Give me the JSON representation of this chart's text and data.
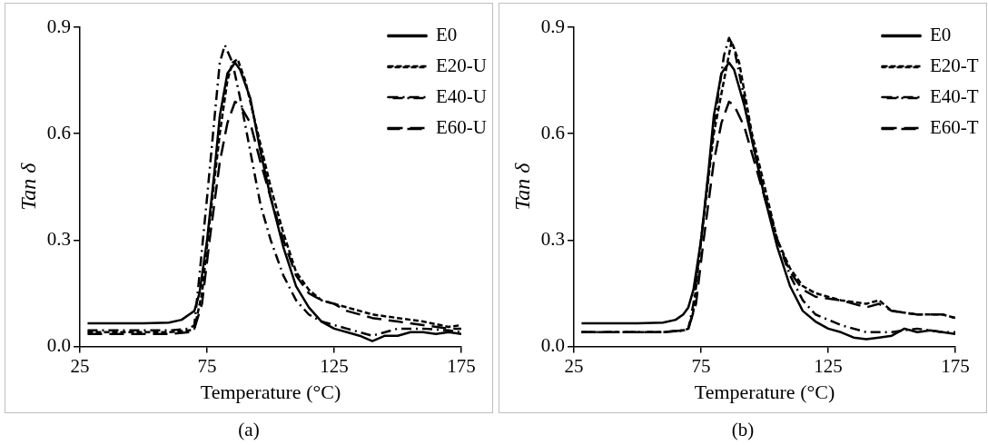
{
  "chart_data": [
    {
      "type": "line",
      "xlabel": "Temperature (°C)",
      "ylabel": "Tan δ",
      "annotations": [
        "(a)"
      ],
      "xlim": [
        25,
        175
      ],
      "xticks": [
        25,
        75,
        125,
        175
      ],
      "ylim": [
        0,
        0.9
      ],
      "yticks": [
        {
          "value": 0,
          "label": "0.0"
        },
        0.3,
        0.6,
        0.9
      ],
      "grid": false,
      "legend": "top right",
      "marker": "none",
      "series": [
        {
          "name": "E0",
          "color": "#000000",
          "line_style": "solid",
          "x": [
            28,
            40,
            50,
            60,
            65,
            68,
            70,
            72,
            75,
            78,
            80,
            83,
            86,
            88,
            92,
            96,
            100,
            105,
            110,
            115,
            120,
            125,
            130,
            135,
            140,
            145,
            150,
            155,
            160,
            165,
            170,
            175
          ],
          "values": [
            0.065,
            0.065,
            0.065,
            0.067,
            0.075,
            0.09,
            0.1,
            0.15,
            0.3,
            0.5,
            0.65,
            0.77,
            0.8,
            0.78,
            0.7,
            0.55,
            0.42,
            0.28,
            0.17,
            0.11,
            0.07,
            0.05,
            0.04,
            0.03,
            0.015,
            0.03,
            0.03,
            0.04,
            0.04,
            0.035,
            0.04,
            0.035
          ]
        },
        {
          "name": "E20-U",
          "color": "#000000",
          "line_style": "dashed",
          "x": [
            28,
            40,
            50,
            60,
            68,
            70,
            73,
            76,
            80,
            83,
            85,
            87,
            90,
            95,
            100,
            105,
            110,
            115,
            120,
            125,
            130,
            140,
            150,
            160,
            170,
            175
          ],
          "values": [
            0.04,
            0.04,
            0.04,
            0.04,
            0.045,
            0.05,
            0.15,
            0.35,
            0.6,
            0.75,
            0.8,
            0.81,
            0.75,
            0.6,
            0.45,
            0.32,
            0.21,
            0.16,
            0.13,
            0.12,
            0.11,
            0.09,
            0.08,
            0.07,
            0.055,
            0.06
          ]
        },
        {
          "name": "E40-U",
          "color": "#000000",
          "line_style": "dashdot",
          "x": [
            28,
            40,
            50,
            60,
            68,
            70,
            72,
            75,
            78,
            80,
            82,
            85,
            88,
            92,
            96,
            100,
            105,
            110,
            115,
            120,
            130,
            140,
            150,
            160,
            170,
            175
          ],
          "values": [
            0.045,
            0.045,
            0.045,
            0.045,
            0.05,
            0.06,
            0.2,
            0.42,
            0.65,
            0.8,
            0.85,
            0.8,
            0.7,
            0.55,
            0.4,
            0.3,
            0.2,
            0.13,
            0.09,
            0.07,
            0.05,
            0.03,
            0.05,
            0.05,
            0.045,
            0.04
          ]
        },
        {
          "name": "E60-U",
          "color": "#000000",
          "line_style": "longdash",
          "x": [
            28,
            40,
            50,
            60,
            68,
            70,
            73,
            76,
            80,
            83,
            86,
            88,
            92,
            96,
            100,
            105,
            110,
            115,
            120,
            125,
            130,
            140,
            150,
            160,
            170,
            175
          ],
          "values": [
            0.035,
            0.035,
            0.035,
            0.035,
            0.04,
            0.05,
            0.12,
            0.3,
            0.52,
            0.63,
            0.69,
            0.68,
            0.63,
            0.52,
            0.42,
            0.3,
            0.2,
            0.15,
            0.13,
            0.12,
            0.1,
            0.08,
            0.07,
            0.06,
            0.05,
            0.05
          ]
        }
      ]
    },
    {
      "type": "line",
      "xlabel": "Temperature (°C)",
      "ylabel": "Tan δ",
      "annotations": [
        "(b)"
      ],
      "xlim": [
        25,
        175
      ],
      "xticks": [
        25,
        75,
        125,
        175
      ],
      "ylim": [
        0,
        0.9
      ],
      "yticks": [
        {
          "value": 0,
          "label": "0.0"
        },
        0.3,
        0.6,
        0.9
      ],
      "grid": false,
      "legend": "top right",
      "marker": "none",
      "series": [
        {
          "name": "E0",
          "color": "#000000",
          "line_style": "solid",
          "x": [
            28,
            40,
            50,
            60,
            65,
            68,
            70,
            72,
            75,
            78,
            80,
            83,
            86,
            88,
            92,
            96,
            100,
            105,
            110,
            115,
            120,
            125,
            130,
            135,
            140,
            145,
            150,
            155,
            160,
            165,
            170,
            175
          ],
          "values": [
            0.065,
            0.065,
            0.065,
            0.067,
            0.075,
            0.09,
            0.11,
            0.16,
            0.3,
            0.5,
            0.65,
            0.77,
            0.8,
            0.78,
            0.68,
            0.55,
            0.42,
            0.28,
            0.17,
            0.1,
            0.07,
            0.05,
            0.04,
            0.025,
            0.02,
            0.025,
            0.03,
            0.05,
            0.04,
            0.045,
            0.04,
            0.035
          ]
        },
        {
          "name": "E20-T",
          "color": "#000000",
          "line_style": "dashed",
          "x": [
            28,
            40,
            50,
            60,
            68,
            70,
            72,
            75,
            80,
            84,
            87,
            90,
            95,
            100,
            105,
            110,
            115,
            120,
            130,
            140,
            145,
            150,
            160,
            170,
            175
          ],
          "values": [
            0.04,
            0.04,
            0.04,
            0.04,
            0.045,
            0.05,
            0.1,
            0.3,
            0.6,
            0.75,
            0.86,
            0.8,
            0.6,
            0.45,
            0.3,
            0.22,
            0.17,
            0.15,
            0.13,
            0.12,
            0.13,
            0.1,
            0.09,
            0.09,
            0.08
          ]
        },
        {
          "name": "E40-T",
          "color": "#000000",
          "line_style": "dashdot",
          "x": [
            28,
            40,
            50,
            60,
            68,
            70,
            72,
            75,
            80,
            84,
            86,
            88,
            92,
            96,
            100,
            105,
            110,
            115,
            120,
            130,
            140,
            150,
            160,
            170,
            175
          ],
          "values": [
            0.04,
            0.04,
            0.04,
            0.04,
            0.045,
            0.05,
            0.12,
            0.3,
            0.62,
            0.82,
            0.87,
            0.84,
            0.7,
            0.55,
            0.43,
            0.3,
            0.2,
            0.13,
            0.09,
            0.06,
            0.04,
            0.04,
            0.05,
            0.04,
            0.04
          ]
        },
        {
          "name": "E60-T",
          "color": "#000000",
          "line_style": "longdash",
          "x": [
            28,
            40,
            50,
            60,
            68,
            70,
            73,
            76,
            80,
            83,
            86,
            88,
            92,
            96,
            100,
            105,
            110,
            115,
            120,
            130,
            140,
            145,
            150,
            160,
            170,
            175
          ],
          "values": [
            0.04,
            0.04,
            0.04,
            0.04,
            0.045,
            0.05,
            0.12,
            0.3,
            0.52,
            0.63,
            0.69,
            0.68,
            0.62,
            0.52,
            0.42,
            0.3,
            0.21,
            0.16,
            0.14,
            0.13,
            0.11,
            0.12,
            0.1,
            0.09,
            0.09,
            0.08
          ]
        }
      ]
    }
  ]
}
